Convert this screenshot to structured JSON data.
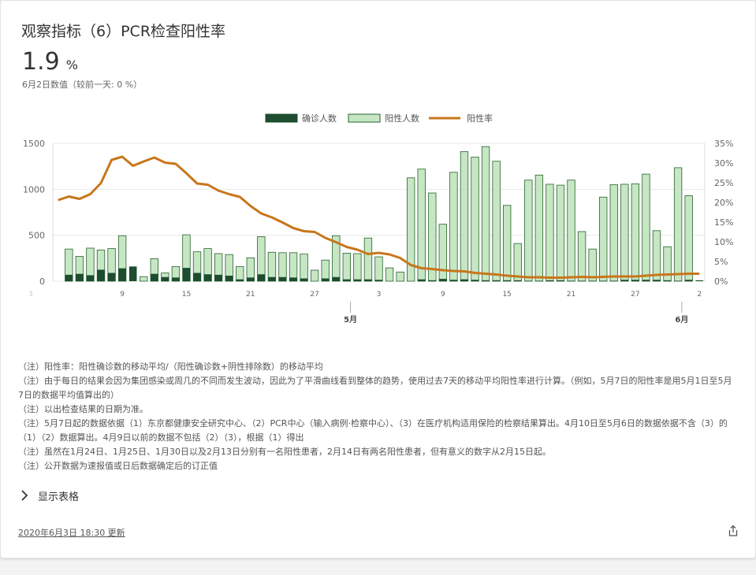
{
  "card": {
    "title": "观察指标（6）PCR检查阳性率",
    "value": "1.9",
    "unit": "%",
    "subtitle": "6月2日数值（较前一天: 0 %）",
    "toggle_label": "显示表格",
    "updated": "2020年6月3日 18:30 更新",
    "notes": [
      "（注）阳性率：阳性确诊数的移动平均/（阳性确诊数+阴性排除数）的移动平均",
      "（注）由于每日的结果会因为集团感染或周几的不同而发生波动，因此为了平滑曲线看到整体的趋势，使用过去7天的移动平均阳性率进行计算。（例如，5月7日的阳性率是用5月1日至5月7日的数据平均值算出的）",
      "（注）以出检查结果的日期为准。",
      "（注）5月7日起的数据依据（1）东京都健康安全研究中心、（2）PCR中心（输入病例·检察中心）、（3）在医疗机构适用保险的检察结果算出。4月10日至5月6日的数据依据不含（3）的（1）（2）数据算出。4月9日以前的数据不包括（2）（3），根据（1）得出",
      "（注）虽然在1月24日、1月25日、1月30日以及2月13日分别有一名阳性患者，2月14日有两名阳性患者，但有意义的数字从2月15日起。",
      "（注）公开数据为速报值或日后数据确定后的订正值"
    ]
  },
  "colors": {
    "confirmed": "#1b4d2e",
    "positive": "#c6e6c4",
    "positive_border": "#27632e",
    "rate": "#c8761b",
    "grid": "#e8e8e8"
  },
  "chart_data": {
    "type": "bar",
    "x_start": "4月3日",
    "x": [
      "3",
      "4",
      "5",
      "6",
      "7",
      "8",
      "9",
      "10",
      "11",
      "12",
      "13",
      "14",
      "15",
      "16",
      "17",
      "18",
      "19",
      "20",
      "21",
      "22",
      "23",
      "24",
      "25",
      "26",
      "27",
      "28",
      "29",
      "30",
      "1",
      "2",
      "3",
      "4",
      "5",
      "6",
      "7",
      "8",
      "9",
      "10",
      "11",
      "12",
      "13",
      "14",
      "15",
      "16",
      "17",
      "18",
      "19",
      "20",
      "21",
      "22",
      "23",
      "24",
      "25",
      "26",
      "27",
      "28",
      "29",
      "30",
      "31",
      "1",
      "2"
    ],
    "x_tick_labels": [
      "3",
      "9",
      "15",
      "21",
      "27",
      "3",
      "9",
      "15",
      "21",
      "27",
      "2"
    ],
    "month_labels": [
      "5月",
      "6月"
    ],
    "series": [
      {
        "name": "确诊人数",
        "type": "bar",
        "axis": "left",
        "values": [
          0,
          70,
          80,
          65,
          125,
          90,
          140,
          160,
          0,
          80,
          45,
          40,
          145,
          90,
          75,
          70,
          60,
          20,
          40,
          75,
          45,
          45,
          40,
          30,
          0,
          30,
          45,
          20,
          20,
          20,
          15,
          0,
          0,
          0,
          20,
          10,
          25,
          15,
          20,
          15,
          10,
          10,
          10,
          10,
          5,
          5,
          10,
          10,
          5,
          5,
          5,
          5,
          5,
          15,
          15,
          15,
          15,
          10,
          5,
          15,
          10
        ]
      },
      {
        "name": "阳性人数",
        "type": "bar",
        "axis": "left",
        "values": [
          0,
          350,
          270,
          360,
          340,
          355,
          495,
          0,
          50,
          245,
          90,
          160,
          505,
          320,
          355,
          300,
          290,
          160,
          255,
          485,
          315,
          310,
          310,
          295,
          120,
          230,
          495,
          305,
          300,
          470,
          265,
          145,
          100,
          1125,
          1220,
          960,
          620,
          1185,
          1410,
          1350,
          1465,
          1305,
          825,
          410,
          1100,
          1155,
          1055,
          1045,
          1100,
          540,
          350,
          915,
          1050,
          1055,
          1060,
          1165,
          550,
          375,
          1235,
          930,
          0
        ]
      },
      {
        "name": "阳性率",
        "type": "line",
        "axis": "right",
        "values": [
          20.6,
          21.5,
          20.9,
          22.1,
          24.9,
          30.8,
          31.6,
          29.3,
          30.4,
          31.4,
          30.1,
          29.8,
          27.4,
          24.8,
          24.5,
          23.0,
          22.1,
          21.4,
          19.1,
          17.2,
          16.2,
          14.9,
          13.5,
          12.7,
          12.5,
          11.0,
          9.9,
          8.7,
          8.0,
          6.9,
          7.2,
          6.8,
          5.9,
          4.1,
          3.3,
          3.1,
          2.8,
          2.6,
          2.5,
          2.1,
          1.9,
          1.7,
          1.4,
          1.2,
          1.0,
          1.0,
          0.9,
          0.9,
          1.0,
          1.1,
          1.0,
          1.1,
          1.2,
          1.2,
          1.2,
          1.4,
          1.6,
          1.7,
          1.8,
          1.9,
          1.9
        ]
      }
    ],
    "y_left": {
      "range": [
        0,
        1500
      ],
      "ticks": [
        "0",
        "500",
        "1000",
        "1500"
      ]
    },
    "y_right": {
      "range": [
        0,
        35
      ],
      "ticks": [
        "0%",
        "5%",
        "10%",
        "15%",
        "20%",
        "25%",
        "30%",
        "35%"
      ]
    },
    "legend_position": "top-center",
    "grid": true
  }
}
